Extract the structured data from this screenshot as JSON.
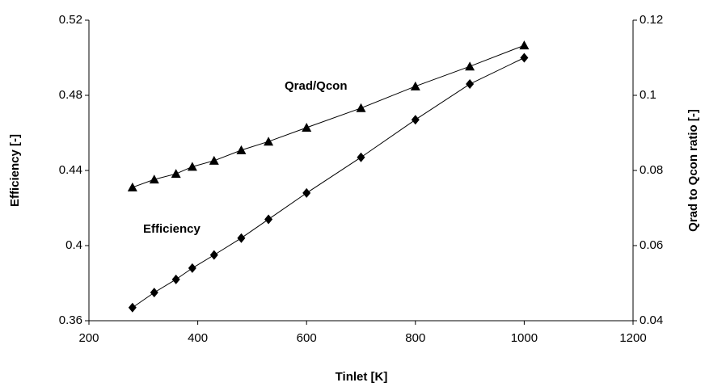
{
  "chart_data": {
    "type": "line",
    "x_label": "Tinlet [K]",
    "y_label": "Efficiency [-]",
    "y2_label": "Qrad to Qcon ratio [-]",
    "x": [
      280,
      320,
      360,
      390,
      430,
      480,
      530,
      600,
      700,
      800,
      900,
      1000
    ],
    "series": [
      {
        "name": "Efficiency",
        "color": "#000000",
        "marker": "diamond",
        "values": [
          0.367,
          0.375,
          0.382,
          0.388,
          0.395,
          0.404,
          0.414,
          0.428,
          0.447,
          0.467,
          0.486,
          0.5
        ]
      },
      {
        "name": "Qrad/Qcon",
        "color": "#000000",
        "marker": "triangle",
        "axis": "y2",
        "values": [
          0.0755,
          0.0776,
          0.0791,
          0.081,
          0.0826,
          0.0854,
          0.0877,
          0.0914,
          0.0966,
          0.1024,
          0.1077,
          0.1133
        ]
      }
    ],
    "xlim": [
      200,
      1200
    ],
    "xticks": [
      200,
      400,
      600,
      800,
      1000,
      1200
    ],
    "ylim": [
      0.36,
      0.52
    ],
    "yticks": [
      0.36,
      0.4,
      0.44,
      0.48,
      0.52
    ],
    "y2lim": [
      0.04,
      0.12
    ],
    "y2ticks": [
      0.04,
      0.06,
      0.08,
      0.1,
      0.12
    ],
    "grid": false
  }
}
